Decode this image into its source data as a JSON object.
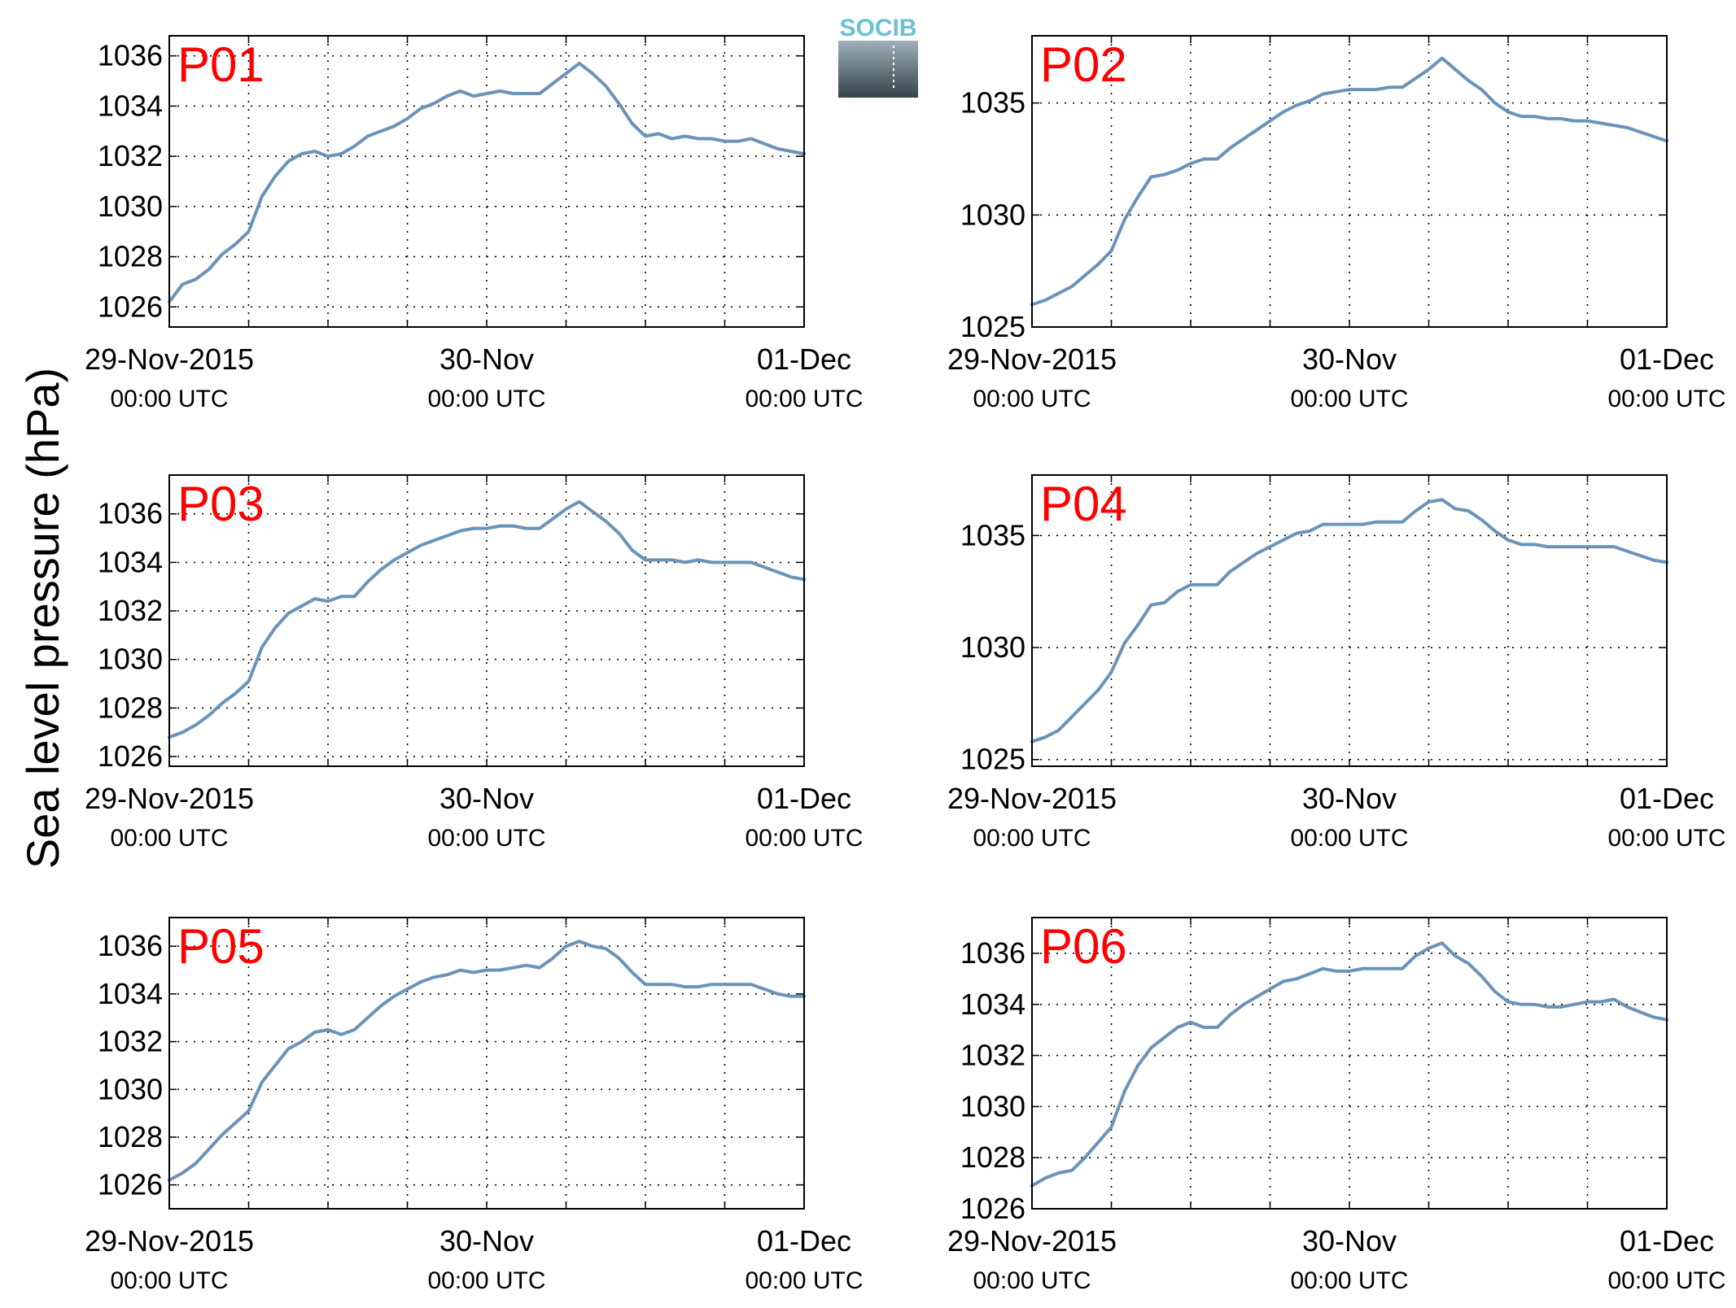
{
  "figure": {
    "ylabel": "Sea level pressure (hPa)",
    "logo_text": "SOCIB",
    "colors": {
      "line": "#6b93b8",
      "panel_label": "#ff0000",
      "logo_accent": "#6cc0d4",
      "logo_dark": "#3a4a54"
    }
  },
  "chart_data": [
    {
      "type": "line",
      "title": "P01",
      "x_labels": [
        {
          "x": 0,
          "date": "29-Nov-2015",
          "time": "00:00 UTC"
        },
        {
          "x": 24,
          "date": "30-Nov",
          "time": "00:00 UTC"
        },
        {
          "x": 48,
          "date": "01-Dec",
          "time": "00:00 UTC"
        }
      ],
      "xlim": [
        0,
        48
      ],
      "ylim": [
        1025.2,
        1036.8
      ],
      "yticks": [
        1026,
        1028,
        1030,
        1032,
        1034,
        1036
      ],
      "grid": true,
      "series": [
        {
          "x": [
            0,
            1,
            2,
            3,
            4,
            5,
            6,
            7,
            8,
            9,
            10,
            11,
            12,
            13,
            14,
            15,
            16,
            17,
            18,
            19,
            20,
            21,
            22,
            23,
            24,
            25,
            26,
            27,
            28,
            29,
            30,
            31,
            32,
            33,
            34,
            35,
            36,
            37,
            38,
            39,
            40,
            41,
            42,
            43,
            44,
            45,
            46,
            47,
            48
          ],
          "values": [
            1026.2,
            1026.9,
            1027.1,
            1027.5,
            1028.1,
            1028.5,
            1029.0,
            1030.4,
            1031.2,
            1031.8,
            1032.1,
            1032.2,
            1032.0,
            1032.1,
            1032.4,
            1032.8,
            1033.0,
            1033.2,
            1033.5,
            1033.9,
            1034.1,
            1034.4,
            1034.6,
            1034.4,
            1034.5,
            1034.6,
            1034.5,
            1034.5,
            1034.5,
            1034.9,
            1035.3,
            1035.7,
            1035.3,
            1034.8,
            1034.1,
            1033.3,
            1032.8,
            1032.9,
            1032.7,
            1032.8,
            1032.7,
            1032.7,
            1032.6,
            1032.6,
            1032.7,
            1032.5,
            1032.3,
            1032.2,
            1032.1
          ]
        }
      ]
    },
    {
      "type": "line",
      "title": "P02",
      "x_labels": [
        {
          "x": 0,
          "date": "29-Nov-2015",
          "time": "00:00 UTC"
        },
        {
          "x": 24,
          "date": "30-Nov",
          "time": "00:00 UTC"
        },
        {
          "x": 48,
          "date": "01-Dec",
          "time": "00:00 UTC"
        }
      ],
      "xlim": [
        0,
        48
      ],
      "ylim": [
        1025,
        1038
      ],
      "yticks": [
        1025,
        1030,
        1035
      ],
      "grid": true,
      "series": [
        {
          "x": [
            0,
            1,
            2,
            3,
            4,
            5,
            6,
            7,
            8,
            9,
            10,
            11,
            12,
            13,
            14,
            15,
            16,
            17,
            18,
            19,
            20,
            21,
            22,
            23,
            24,
            25,
            26,
            27,
            28,
            29,
            30,
            31,
            32,
            33,
            34,
            35,
            36,
            37,
            38,
            39,
            40,
            41,
            42,
            43,
            44,
            45,
            46,
            47,
            48
          ],
          "values": [
            1026.0,
            1026.2,
            1026.5,
            1026.8,
            1027.3,
            1027.8,
            1028.4,
            1029.8,
            1030.8,
            1031.7,
            1031.8,
            1032.0,
            1032.3,
            1032.5,
            1032.5,
            1033.0,
            1033.4,
            1033.8,
            1034.2,
            1034.6,
            1034.9,
            1035.1,
            1035.4,
            1035.5,
            1035.6,
            1035.6,
            1035.6,
            1035.7,
            1035.7,
            1036.1,
            1036.5,
            1037.0,
            1036.5,
            1036.0,
            1035.6,
            1035.0,
            1034.6,
            1034.4,
            1034.4,
            1034.3,
            1034.3,
            1034.2,
            1034.2,
            1034.1,
            1034.0,
            1033.9,
            1033.7,
            1033.5,
            1033.3
          ]
        }
      ]
    },
    {
      "type": "line",
      "title": "P03",
      "x_labels": [
        {
          "x": 0,
          "date": "29-Nov-2015",
          "time": "00:00 UTC"
        },
        {
          "x": 24,
          "date": "30-Nov",
          "time": "00:00 UTC"
        },
        {
          "x": 48,
          "date": "01-Dec",
          "time": "00:00 UTC"
        }
      ],
      "xlim": [
        0,
        48
      ],
      "ylim": [
        1025.6,
        1037.6
      ],
      "yticks": [
        1026,
        1028,
        1030,
        1032,
        1034,
        1036
      ],
      "grid": true,
      "series": [
        {
          "x": [
            0,
            1,
            2,
            3,
            4,
            5,
            6,
            7,
            8,
            9,
            10,
            11,
            12,
            13,
            14,
            15,
            16,
            17,
            18,
            19,
            20,
            21,
            22,
            23,
            24,
            25,
            26,
            27,
            28,
            29,
            30,
            31,
            32,
            33,
            34,
            35,
            36,
            37,
            38,
            39,
            40,
            41,
            42,
            43,
            44,
            45,
            46,
            47,
            48
          ],
          "values": [
            1026.8,
            1027.0,
            1027.3,
            1027.7,
            1028.2,
            1028.6,
            1029.1,
            1030.5,
            1031.3,
            1031.9,
            1032.2,
            1032.5,
            1032.4,
            1032.6,
            1032.6,
            1033.2,
            1033.7,
            1034.1,
            1034.4,
            1034.7,
            1034.9,
            1035.1,
            1035.3,
            1035.4,
            1035.4,
            1035.5,
            1035.5,
            1035.4,
            1035.4,
            1035.8,
            1036.2,
            1036.5,
            1036.1,
            1035.7,
            1035.2,
            1034.5,
            1034.1,
            1034.1,
            1034.1,
            1034.0,
            1034.1,
            1034.0,
            1034.0,
            1034.0,
            1034.0,
            1033.8,
            1033.6,
            1033.4,
            1033.3
          ]
        }
      ]
    },
    {
      "type": "line",
      "title": "P04",
      "x_labels": [
        {
          "x": 0,
          "date": "29-Nov-2015",
          "time": "00:00 UTC"
        },
        {
          "x": 24,
          "date": "30-Nov",
          "time": "00:00 UTC"
        },
        {
          "x": 48,
          "date": "01-Dec",
          "time": "00:00 UTC"
        }
      ],
      "xlim": [
        0,
        48
      ],
      "ylim": [
        1024.7,
        1037.7
      ],
      "yticks": [
        1025,
        1030,
        1035
      ],
      "grid": true,
      "series": [
        {
          "x": [
            0,
            1,
            2,
            3,
            4,
            5,
            6,
            7,
            8,
            9,
            10,
            11,
            12,
            13,
            14,
            15,
            16,
            17,
            18,
            19,
            20,
            21,
            22,
            23,
            24,
            25,
            26,
            27,
            28,
            29,
            30,
            31,
            32,
            33,
            34,
            35,
            36,
            37,
            38,
            39,
            40,
            41,
            42,
            43,
            44,
            45,
            46,
            47,
            48
          ],
          "values": [
            1025.8,
            1026.0,
            1026.3,
            1026.9,
            1027.5,
            1028.1,
            1028.9,
            1030.2,
            1031.0,
            1031.9,
            1032.0,
            1032.5,
            1032.8,
            1032.8,
            1032.8,
            1033.4,
            1033.8,
            1034.2,
            1034.5,
            1034.8,
            1035.1,
            1035.2,
            1035.5,
            1035.5,
            1035.5,
            1035.5,
            1035.6,
            1035.6,
            1035.6,
            1036.1,
            1036.5,
            1036.6,
            1036.2,
            1036.1,
            1035.7,
            1035.2,
            1034.8,
            1034.6,
            1034.6,
            1034.5,
            1034.5,
            1034.5,
            1034.5,
            1034.5,
            1034.5,
            1034.3,
            1034.1,
            1033.9,
            1033.8
          ]
        }
      ]
    },
    {
      "type": "line",
      "title": "P05",
      "x_labels": [
        {
          "x": 0,
          "date": "29-Nov-2015",
          "time": "00:00 UTC"
        },
        {
          "x": 24,
          "date": "30-Nov",
          "time": "00:00 UTC"
        },
        {
          "x": 48,
          "date": "01-Dec",
          "time": "00:00 UTC"
        }
      ],
      "xlim": [
        0,
        48
      ],
      "ylim": [
        1025.0,
        1037.2
      ],
      "yticks": [
        1026,
        1028,
        1030,
        1032,
        1034,
        1036
      ],
      "grid": true,
      "series": [
        {
          "x": [
            0,
            1,
            2,
            3,
            4,
            5,
            6,
            7,
            8,
            9,
            10,
            11,
            12,
            13,
            14,
            15,
            16,
            17,
            18,
            19,
            20,
            21,
            22,
            23,
            24,
            25,
            26,
            27,
            28,
            29,
            30,
            31,
            32,
            33,
            34,
            35,
            36,
            37,
            38,
            39,
            40,
            41,
            42,
            43,
            44,
            45,
            46,
            47,
            48
          ],
          "values": [
            1026.2,
            1026.5,
            1026.9,
            1027.5,
            1028.1,
            1028.6,
            1029.1,
            1030.3,
            1031.0,
            1031.7,
            1032.0,
            1032.4,
            1032.5,
            1032.3,
            1032.5,
            1033.0,
            1033.5,
            1033.9,
            1034.2,
            1034.5,
            1034.7,
            1034.8,
            1035.0,
            1034.9,
            1035.0,
            1035.0,
            1035.1,
            1035.2,
            1035.1,
            1035.5,
            1036.0,
            1036.2,
            1036.0,
            1035.9,
            1035.5,
            1034.9,
            1034.4,
            1034.4,
            1034.4,
            1034.3,
            1034.3,
            1034.4,
            1034.4,
            1034.4,
            1034.4,
            1034.2,
            1034.0,
            1033.9,
            1033.9
          ]
        }
      ]
    },
    {
      "type": "line",
      "title": "P06",
      "x_labels": [
        {
          "x": 0,
          "date": "29-Nov-2015",
          "time": "00:00 UTC"
        },
        {
          "x": 24,
          "date": "30-Nov",
          "time": "00:00 UTC"
        },
        {
          "x": 48,
          "date": "01-Dec",
          "time": "00:00 UTC"
        }
      ],
      "xlim": [
        0,
        48
      ],
      "ylim": [
        1026.0,
        1037.4
      ],
      "yticks": [
        1026,
        1028,
        1030,
        1032,
        1034,
        1036
      ],
      "grid": true,
      "series": [
        {
          "x": [
            0,
            1,
            2,
            3,
            4,
            5,
            6,
            7,
            8,
            9,
            10,
            11,
            12,
            13,
            14,
            15,
            16,
            17,
            18,
            19,
            20,
            21,
            22,
            23,
            24,
            25,
            26,
            27,
            28,
            29,
            30,
            31,
            32,
            33,
            34,
            35,
            36,
            37,
            38,
            39,
            40,
            41,
            42,
            43,
            44,
            45,
            46,
            47,
            48
          ],
          "values": [
            1026.9,
            1027.2,
            1027.4,
            1027.5,
            1028.0,
            1028.6,
            1029.2,
            1030.6,
            1031.6,
            1032.3,
            1032.7,
            1033.1,
            1033.3,
            1033.1,
            1033.1,
            1033.6,
            1034.0,
            1034.3,
            1034.6,
            1034.9,
            1035.0,
            1035.2,
            1035.4,
            1035.3,
            1035.3,
            1035.4,
            1035.4,
            1035.4,
            1035.4,
            1035.9,
            1036.2,
            1036.4,
            1035.9,
            1035.6,
            1035.1,
            1034.5,
            1034.1,
            1034.0,
            1034.0,
            1033.9,
            1033.9,
            1034.0,
            1034.1,
            1034.1,
            1034.2,
            1033.9,
            1033.7,
            1033.5,
            1033.4
          ]
        }
      ]
    }
  ]
}
